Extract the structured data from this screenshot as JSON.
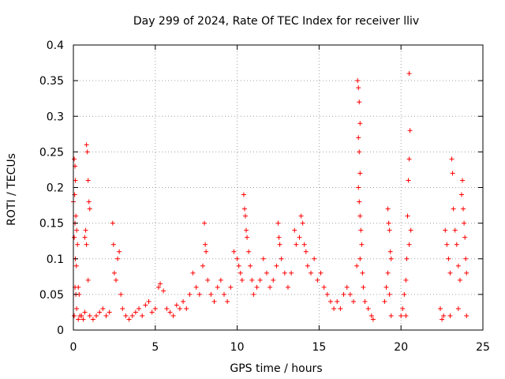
{
  "chart_data": {
    "type": "scatter",
    "title": "Day 299 of 2024, Rate Of TEC Index for receiver lliv",
    "xlabel": "GPS time / hours",
    "ylabel": "ROTI / TECUs",
    "xlim": [
      0,
      25
    ],
    "ylim": [
      0,
      0.4
    ],
    "x_ticks": [
      0,
      5,
      10,
      15,
      20,
      25
    ],
    "x_tick_labels": [
      "0",
      "5",
      "10",
      "15",
      "20",
      "25"
    ],
    "y_ticks": [
      0,
      0.05,
      0.1,
      0.15,
      0.2,
      0.25,
      0.3,
      0.35,
      0.4
    ],
    "y_tick_labels": [
      "0",
      "0.05",
      "0.1",
      "0.15",
      "0.2",
      "0.25",
      "0.3",
      "0.35",
      "0.4"
    ],
    "grid": true,
    "marker": "+",
    "color": "#ff0000",
    "series": [
      {
        "points": [
          [
            0.0,
            0.18
          ],
          [
            0.05,
            0.24
          ],
          [
            0.1,
            0.23
          ],
          [
            0.12,
            0.21
          ],
          [
            0.08,
            0.19
          ],
          [
            0.15,
            0.16
          ],
          [
            0.1,
            0.15
          ],
          [
            0.2,
            0.14
          ],
          [
            0.05,
            0.13
          ],
          [
            0.12,
            0.1
          ],
          [
            0.18,
            0.09
          ],
          [
            0.1,
            0.06
          ],
          [
            0.15,
            0.05
          ],
          [
            0.25,
            0.12
          ],
          [
            0.3,
            0.06
          ],
          [
            0.35,
            0.05
          ],
          [
            0.2,
            0.03
          ],
          [
            0.05,
            0.02
          ],
          [
            0.3,
            0.015
          ],
          [
            0.4,
            0.02
          ],
          [
            0.5,
            0.02
          ],
          [
            0.6,
            0.015
          ],
          [
            0.7,
            0.025
          ],
          [
            0.8,
            0.26
          ],
          [
            0.85,
            0.25
          ],
          [
            0.9,
            0.21
          ],
          [
            0.95,
            0.18
          ],
          [
            1.0,
            0.17
          ],
          [
            0.75,
            0.14
          ],
          [
            0.7,
            0.13
          ],
          [
            0.8,
            0.12
          ],
          [
            0.9,
            0.07
          ],
          [
            1.0,
            0.02
          ],
          [
            1.2,
            0.015
          ],
          [
            1.4,
            0.02
          ],
          [
            1.6,
            0.025
          ],
          [
            1.8,
            0.03
          ],
          [
            2.0,
            0.02
          ],
          [
            2.2,
            0.025
          ],
          [
            2.4,
            0.15
          ],
          [
            2.45,
            0.12
          ],
          [
            2.5,
            0.08
          ],
          [
            2.6,
            0.07
          ],
          [
            2.7,
            0.1
          ],
          [
            2.8,
            0.11
          ],
          [
            2.9,
            0.05
          ],
          [
            3.0,
            0.03
          ],
          [
            3.2,
            0.02
          ],
          [
            3.4,
            0.015
          ],
          [
            3.6,
            0.02
          ],
          [
            3.8,
            0.025
          ],
          [
            4.0,
            0.03
          ],
          [
            4.2,
            0.02
          ],
          [
            4.4,
            0.035
          ],
          [
            4.6,
            0.04
          ],
          [
            4.8,
            0.025
          ],
          [
            5.0,
            0.03
          ],
          [
            5.2,
            0.06
          ],
          [
            5.3,
            0.065
          ],
          [
            5.5,
            0.055
          ],
          [
            5.7,
            0.03
          ],
          [
            5.9,
            0.025
          ],
          [
            6.1,
            0.02
          ],
          [
            6.3,
            0.035
          ],
          [
            6.5,
            0.03
          ],
          [
            6.7,
            0.04
          ],
          [
            6.9,
            0.03
          ],
          [
            7.1,
            0.05
          ],
          [
            7.3,
            0.08
          ],
          [
            7.5,
            0.06
          ],
          [
            7.7,
            0.05
          ],
          [
            7.9,
            0.09
          ],
          [
            8.0,
            0.15
          ],
          [
            8.05,
            0.12
          ],
          [
            8.1,
            0.11
          ],
          [
            8.2,
            0.07
          ],
          [
            8.4,
            0.05
          ],
          [
            8.6,
            0.04
          ],
          [
            8.8,
            0.06
          ],
          [
            9.0,
            0.07
          ],
          [
            9.2,
            0.05
          ],
          [
            9.4,
            0.04
          ],
          [
            9.6,
            0.06
          ],
          [
            9.8,
            0.11
          ],
          [
            10.0,
            0.1
          ],
          [
            10.1,
            0.09
          ],
          [
            10.2,
            0.08
          ],
          [
            10.3,
            0.07
          ],
          [
            10.4,
            0.19
          ],
          [
            10.45,
            0.17
          ],
          [
            10.5,
            0.16
          ],
          [
            10.55,
            0.14
          ],
          [
            10.6,
            0.13
          ],
          [
            10.7,
            0.11
          ],
          [
            10.8,
            0.09
          ],
          [
            10.9,
            0.07
          ],
          [
            11.0,
            0.05
          ],
          [
            11.2,
            0.06
          ],
          [
            11.4,
            0.07
          ],
          [
            11.6,
            0.1
          ],
          [
            11.8,
            0.08
          ],
          [
            12.0,
            0.06
          ],
          [
            12.2,
            0.07
          ],
          [
            12.4,
            0.09
          ],
          [
            12.5,
            0.15
          ],
          [
            12.55,
            0.13
          ],
          [
            12.6,
            0.12
          ],
          [
            12.7,
            0.1
          ],
          [
            12.9,
            0.08
          ],
          [
            13.1,
            0.06
          ],
          [
            13.3,
            0.08
          ],
          [
            13.5,
            0.14
          ],
          [
            13.6,
            0.12
          ],
          [
            13.8,
            0.13
          ],
          [
            13.9,
            0.16
          ],
          [
            14.0,
            0.15
          ],
          [
            14.1,
            0.12
          ],
          [
            14.2,
            0.11
          ],
          [
            14.3,
            0.09
          ],
          [
            14.5,
            0.08
          ],
          [
            14.7,
            0.1
          ],
          [
            14.9,
            0.07
          ],
          [
            15.1,
            0.08
          ],
          [
            15.3,
            0.06
          ],
          [
            15.5,
            0.05
          ],
          [
            15.7,
            0.04
          ],
          [
            15.9,
            0.03
          ],
          [
            16.1,
            0.04
          ],
          [
            16.3,
            0.03
          ],
          [
            16.5,
            0.05
          ],
          [
            16.7,
            0.06
          ],
          [
            16.9,
            0.05
          ],
          [
            17.1,
            0.04
          ],
          [
            17.3,
            0.09
          ],
          [
            17.35,
            0.35
          ],
          [
            17.4,
            0.34
          ],
          [
            17.45,
            0.32
          ],
          [
            17.5,
            0.29
          ],
          [
            17.4,
            0.27
          ],
          [
            17.45,
            0.25
          ],
          [
            17.5,
            0.22
          ],
          [
            17.4,
            0.2
          ],
          [
            17.45,
            0.18
          ],
          [
            17.5,
            0.16
          ],
          [
            17.55,
            0.14
          ],
          [
            17.6,
            0.12
          ],
          [
            17.5,
            0.1
          ],
          [
            17.65,
            0.08
          ],
          [
            17.7,
            0.06
          ],
          [
            17.8,
            0.04
          ],
          [
            18.0,
            0.03
          ],
          [
            18.2,
            0.02
          ],
          [
            18.3,
            0.015
          ],
          [
            19.0,
            0.04
          ],
          [
            19.1,
            0.06
          ],
          [
            19.2,
            0.17
          ],
          [
            19.25,
            0.15
          ],
          [
            19.3,
            0.14
          ],
          [
            19.35,
            0.11
          ],
          [
            19.4,
            0.1
          ],
          [
            19.2,
            0.08
          ],
          [
            19.3,
            0.05
          ],
          [
            19.4,
            0.02
          ],
          [
            20.0,
            0.02
          ],
          [
            20.1,
            0.03
          ],
          [
            20.2,
            0.05
          ],
          [
            20.3,
            0.07
          ],
          [
            20.35,
            0.1
          ],
          [
            20.4,
            0.16
          ],
          [
            20.45,
            0.21
          ],
          [
            20.5,
            0.24
          ],
          [
            20.55,
            0.28
          ],
          [
            20.5,
            0.36
          ],
          [
            20.6,
            0.14
          ],
          [
            20.5,
            0.12
          ],
          [
            20.3,
            0.02
          ],
          [
            22.4,
            0.03
          ],
          [
            22.6,
            0.02
          ],
          [
            22.7,
            0.14
          ],
          [
            22.8,
            0.12
          ],
          [
            22.9,
            0.1
          ],
          [
            23.0,
            0.08
          ],
          [
            23.1,
            0.24
          ],
          [
            23.15,
            0.22
          ],
          [
            23.2,
            0.17
          ],
          [
            23.3,
            0.14
          ],
          [
            23.4,
            0.12
          ],
          [
            23.5,
            0.09
          ],
          [
            23.6,
            0.07
          ],
          [
            23.7,
            0.19
          ],
          [
            23.75,
            0.21
          ],
          [
            23.8,
            0.17
          ],
          [
            23.85,
            0.15
          ],
          [
            23.9,
            0.13
          ],
          [
            23.95,
            0.1
          ],
          [
            24.0,
            0.08
          ],
          [
            23.5,
            0.03
          ],
          [
            23.0,
            0.02
          ],
          [
            22.5,
            0.015
          ],
          [
            24.0,
            0.02
          ]
        ]
      }
    ]
  }
}
